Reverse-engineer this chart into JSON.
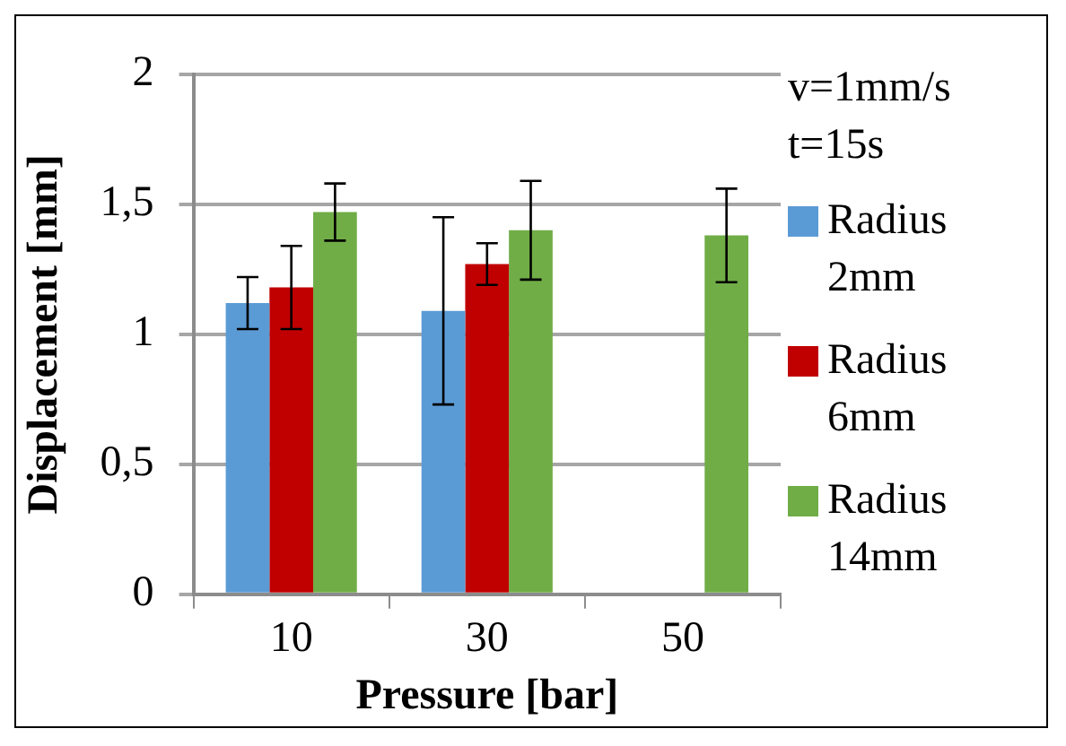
{
  "chart_data": {
    "type": "bar",
    "xlabel": "Pressure [bar]",
    "ylabel": "Displacement [mm]",
    "legend_title": "v=1mm/s t=15s",
    "categories": [
      "10",
      "30",
      "50"
    ],
    "series": [
      {
        "name": "Radius 2mm",
        "color": "#5b9bd5",
        "values": [
          1.12,
          1.09,
          null
        ],
        "errors": [
          0.1,
          0.36,
          null
        ]
      },
      {
        "name": "Radius 6mm",
        "color": "#c00000",
        "values": [
          1.18,
          1.27,
          null
        ],
        "errors": [
          0.16,
          0.08,
          null
        ]
      },
      {
        "name": "Radius 14mm",
        "color": "#70ad47",
        "values": [
          1.47,
          1.4,
          1.38
        ],
        "errors": [
          0.11,
          0.19,
          0.18
        ]
      }
    ],
    "ylim": [
      0,
      2
    ],
    "yticks": [
      0,
      {
        "value": 0.5,
        "label": "0,5"
      },
      1,
      {
        "value": 1.5,
        "label": "1,5"
      },
      2
    ],
    "grid": "y",
    "legend": "right"
  }
}
